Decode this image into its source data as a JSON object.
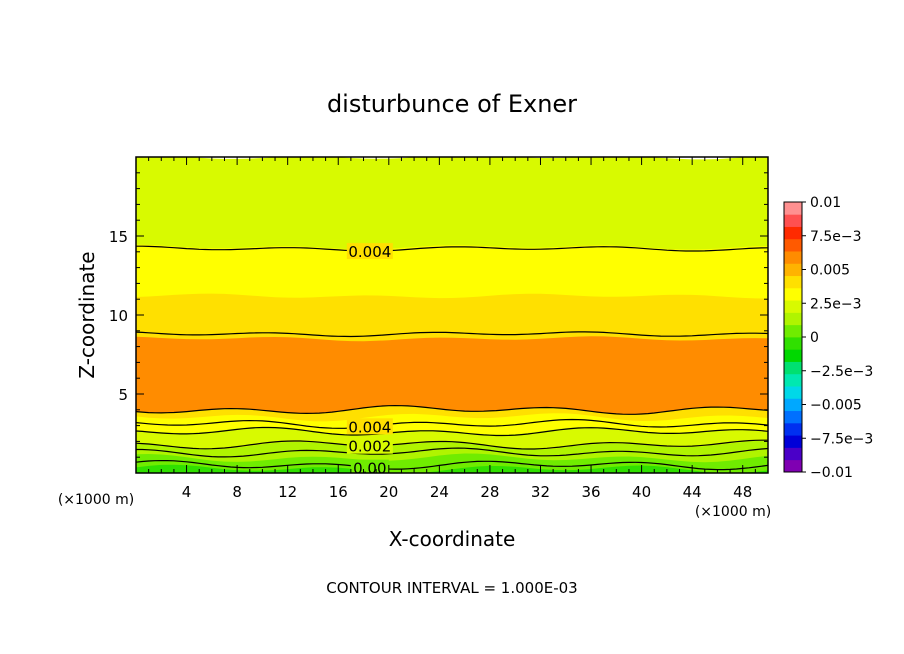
{
  "chart_data": {
    "type": "heatmap",
    "title": "disturbunce of Exner",
    "xlabel": "X-coordinate",
    "ylabel": "Z-coordinate",
    "x_unit": "(×1000 m)",
    "y_unit": "(×1000 m)",
    "xlim": [
      0,
      50
    ],
    "ylim": [
      0,
      20
    ],
    "x_ticks": [
      4,
      8,
      12,
      16,
      20,
      24,
      28,
      32,
      36,
      40,
      44,
      48
    ],
    "y_ticks": [
      5,
      10,
      15
    ],
    "footer": "CONTOUR INTERVAL = 1.000E-03",
    "colorbar": {
      "labels": [
        "0.01",
        "7.5e−3",
        "0.005",
        "2.5e−3",
        "0",
        "−2.5e−3",
        "−0.005",
        "−7.5e−3",
        "−0.01"
      ],
      "min": -0.01,
      "max": 0.01,
      "colors": [
        "#7f00b2",
        "#4a00c8",
        "#0000d8",
        "#0030f0",
        "#0070ff",
        "#00a8ff",
        "#00d8e8",
        "#00e8b0",
        "#00e070",
        "#00d800",
        "#30e000",
        "#70ec00",
        "#b0f400",
        "#d8fa00",
        "#ffff00",
        "#ffe000",
        "#ffb300",
        "#ff8c00",
        "#ff5a00",
        "#ff2a00",
        "#ff5050",
        "#ff9090"
      ]
    },
    "bands": [
      {
        "z_top": 0.25,
        "value": -0.0005
      },
      {
        "z_top": 0.6,
        "value": 0.0
      },
      {
        "z_top": 0.95,
        "value": 0.0005
      },
      {
        "z_top": 1.35,
        "value": 0.001
      },
      {
        "z_top": 1.75,
        "value": 0.0015
      },
      {
        "z_top": 2.2,
        "value": 0.002
      },
      {
        "z_top": 2.65,
        "value": 0.0025
      },
      {
        "z_top": 3.1,
        "value": 0.003
      },
      {
        "z_top": 3.55,
        "value": 0.0035
      },
      {
        "z_top": 4.0,
        "value": 0.004
      },
      {
        "z_top": 8.5,
        "value": 0.0055
      },
      {
        "z_top": 11.2,
        "value": 0.0045
      },
      {
        "z_top": 14.3,
        "value": 0.0035
      },
      {
        "z_top": 17.5,
        "value": 0.0025
      },
      {
        "z_top": 20.0,
        "value": 0.002
      }
    ],
    "contours": [
      {
        "level": 0.0,
        "z": 0.5,
        "label": "0.00"
      },
      {
        "level": 0.001,
        "z": 1.3
      },
      {
        "level": 0.002,
        "z": 1.8,
        "label": "0.002"
      },
      {
        "level": 0.003,
        "z": 2.6
      },
      {
        "level": 0.004,
        "z": 3.1,
        "label": "0.004"
      },
      {
        "level": 0.005,
        "z": 4.0
      },
      {
        "level": 0.005,
        "z": 8.8
      },
      {
        "level": 0.004,
        "z": 14.2,
        "label": "0.004"
      }
    ]
  }
}
